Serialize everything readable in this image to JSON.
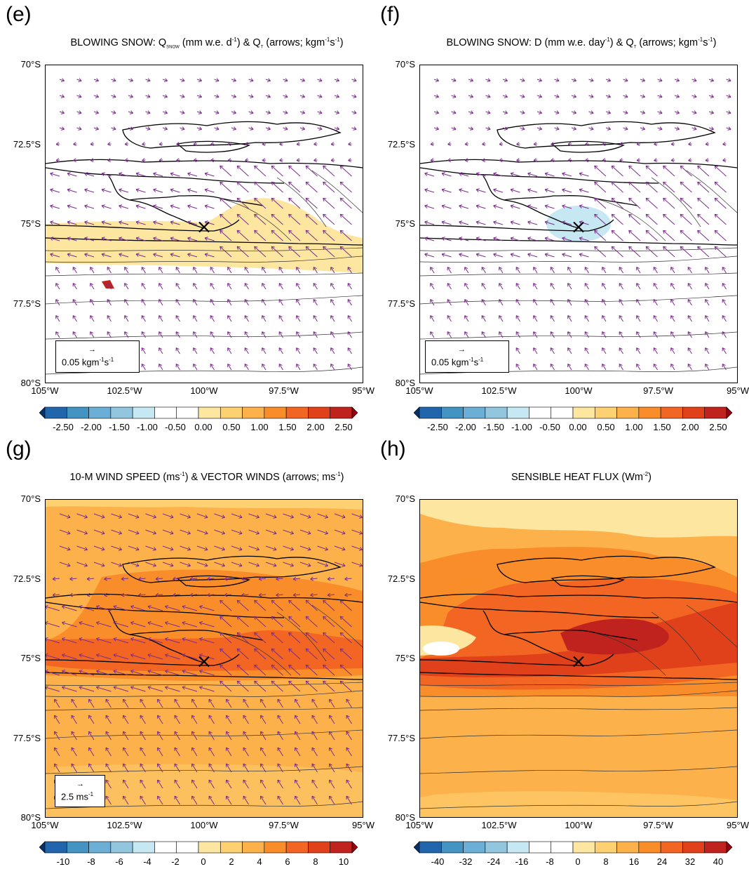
{
  "panels": [
    {
      "label": "(e)",
      "title_pre": "BLOWING SNOW: Q",
      "title_sub": "SNOW",
      "title_mid": " (mm w.e. d",
      "title_sup1": "-1",
      "title_mid2": ") & Q",
      "title_sub2": "T",
      "title_end": " (arrows; kgm",
      "title_sup2": "-1",
      "title_end2": "s",
      "title_sup3": "-1",
      "title_close": ")",
      "ref_vector": "0.05 kgm",
      "ref_sup1": "-1",
      "ref_mid": "s",
      "ref_sup2": "-1",
      "colorbar_ticks": [
        "-2.50",
        "-2.00",
        "-1.50",
        "-1.00",
        "-0.50",
        "0.00",
        "0.50",
        "1.00",
        "1.50",
        "2.00",
        "2.50"
      ]
    },
    {
      "label": "(f)",
      "title_pre": "BLOWING SNOW: D (mm w.e. day",
      "title_sup1": "-1",
      "title_mid": ") & Q",
      "title_sub": "T",
      "title_end": " (arrows; kgm",
      "title_sup2": "-1",
      "title_end2": "s",
      "title_sup3": "-1",
      "title_close": ")",
      "ref_vector": "0.05 kgm",
      "ref_sup1": "-1",
      "ref_mid": "s",
      "ref_sup2": "-1",
      "colorbar_ticks": [
        "-2.50",
        "-2.00",
        "-1.50",
        "-1.00",
        "-0.50",
        "0.00",
        "0.50",
        "1.00",
        "1.50",
        "2.00",
        "2.50"
      ]
    },
    {
      "label": "(g)",
      "title_pre": "10-M WIND SPEED (ms",
      "title_sup1": "-1",
      "title_mid": ") & VECTOR WINDS (arrows; ms",
      "title_sup2": "-1",
      "title_close": ")",
      "ref_vector": "2.5 ms",
      "ref_sup1": "-1",
      "colorbar_ticks": [
        "-10",
        "-8",
        "-6",
        "-4",
        "-2",
        "0",
        "2",
        "4",
        "6",
        "8",
        "10"
      ]
    },
    {
      "label": "(h)",
      "title_pre": "SENSIBLE HEAT FLUX (Wm",
      "title_sup1": "-2",
      "title_close": ")",
      "colorbar_ticks": [
        "-40",
        "-32",
        "-24",
        "-16",
        "-8",
        "0",
        "8",
        "16",
        "24",
        "32",
        "40"
      ]
    }
  ],
  "axes": {
    "y_ticks": [
      "70°S",
      "72.5°S",
      "75°S",
      "77.5°S",
      "80°S"
    ],
    "x_ticks": [
      "105°W",
      "102.5°W",
      "100°W",
      "97.5°W",
      "95°W"
    ],
    "x_range": [
      -105,
      -95
    ],
    "y_range": [
      -80,
      -70
    ]
  },
  "marker": {
    "symbol": "X",
    "lon": -100.0,
    "lat": -75.1
  },
  "colorscale": [
    "#08306b",
    "#2166ac",
    "#4393c3",
    "#6baed6",
    "#92c5de",
    "#c6e8f2",
    "#ffffff",
    "#ffffff",
    "#fde7a0",
    "#fdd072",
    "#fdb14a",
    "#f98d2a",
    "#f26522",
    "#e0411a",
    "#c0221e",
    "#99000d"
  ],
  "arrow_color": "#7b2d8b"
}
